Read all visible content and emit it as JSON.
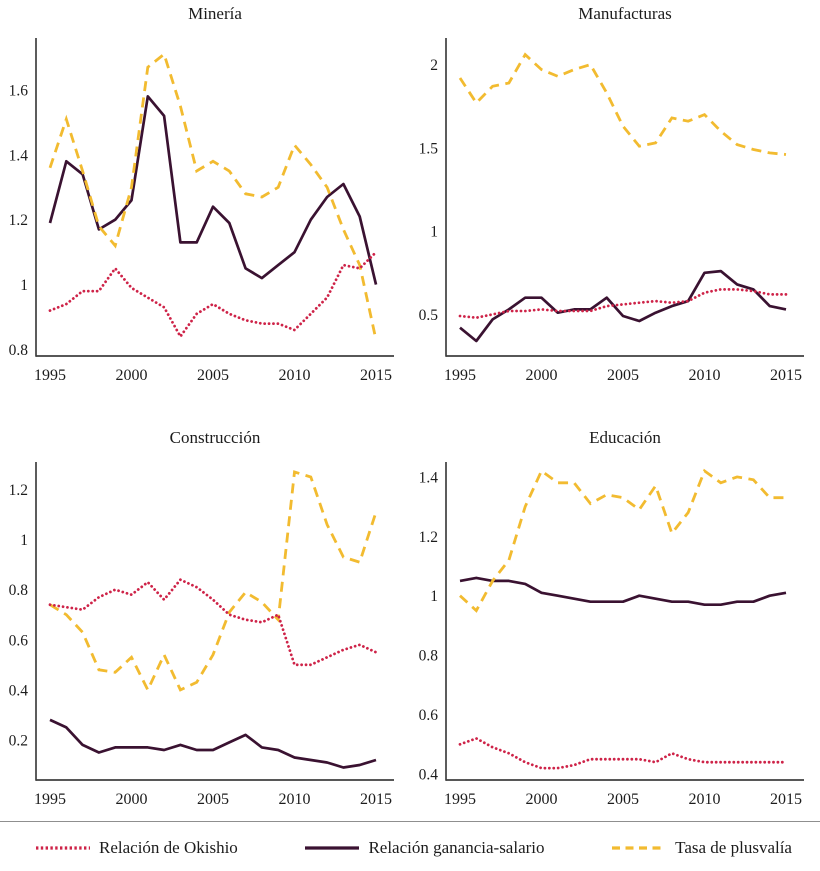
{
  "figure": {
    "kind": "line-chart-grid",
    "panels": 4
  },
  "colors": {
    "okishio": "#CE2348",
    "ganancia": "#3A1231",
    "plusvalia": "#F2BB30",
    "axis": "#3f3f3f",
    "text": "#1c1c1c",
    "divider": "#8f8f8f"
  },
  "legend": {
    "items": [
      {
        "key": "okishio",
        "style": "dotted",
        "label": "Relación de Okishio"
      },
      {
        "key": "ganancia",
        "style": "solid",
        "label": "Relación ganancia-salario"
      },
      {
        "key": "plusvalia",
        "style": "dashed",
        "label": "Tasa de plusvalía"
      }
    ]
  },
  "chart_data": [
    {
      "type": "line",
      "title": "Minería",
      "slug": "mineria",
      "x": [
        1995,
        1996,
        1997,
        1998,
        1999,
        2000,
        2001,
        2002,
        2003,
        2004,
        2005,
        2006,
        2007,
        2008,
        2009,
        2010,
        2011,
        2012,
        2013,
        2014,
        2015
      ],
      "xticks": [
        1995,
        2000,
        2005,
        2010,
        2015
      ],
      "yticks": [
        0.8,
        1,
        1.2,
        1.4,
        1.6
      ],
      "ylim": [
        0.78,
        1.76
      ],
      "grid": false,
      "series": [
        {
          "key": "okishio",
          "name": "Relación de Okishio",
          "style": "dotted",
          "values": [
            0.92,
            0.94,
            0.98,
            0.98,
            1.05,
            0.99,
            0.96,
            0.93,
            0.84,
            0.91,
            0.94,
            0.91,
            0.89,
            0.88,
            0.88,
            0.86,
            0.91,
            0.96,
            1.06,
            1.05,
            1.1
          ]
        },
        {
          "key": "ganancia",
          "name": "Relación ganancia-salario",
          "style": "solid",
          "values": [
            1.19,
            1.38,
            1.34,
            1.17,
            1.2,
            1.26,
            1.58,
            1.52,
            1.13,
            1.13,
            1.24,
            1.19,
            1.05,
            1.02,
            1.06,
            1.1,
            1.2,
            1.27,
            1.31,
            1.21,
            1.0
          ]
        },
        {
          "key": "plusvalia",
          "name": "Tasa de plusvalía",
          "style": "dashed",
          "values": [
            1.36,
            1.51,
            1.35,
            1.18,
            1.12,
            1.3,
            1.67,
            1.71,
            1.55,
            1.35,
            1.38,
            1.35,
            1.28,
            1.27,
            1.3,
            1.43,
            1.37,
            1.3,
            1.17,
            1.06,
            0.83
          ]
        }
      ]
    },
    {
      "type": "line",
      "title": "Manufacturas",
      "slug": "manufacturas",
      "x": [
        1995,
        1996,
        1997,
        1998,
        1999,
        2000,
        2001,
        2002,
        2003,
        2004,
        2005,
        2006,
        2007,
        2008,
        2009,
        2010,
        2011,
        2012,
        2013,
        2014,
        2015
      ],
      "xticks": [
        1995,
        2000,
        2005,
        2010,
        2015
      ],
      "yticks": [
        0.5,
        1,
        1.5,
        2
      ],
      "ylim": [
        0.25,
        2.16
      ],
      "grid": false,
      "series": [
        {
          "key": "okishio",
          "name": "Relación de Okishio",
          "style": "dotted",
          "values": [
            0.49,
            0.48,
            0.5,
            0.52,
            0.52,
            0.53,
            0.52,
            0.52,
            0.52,
            0.55,
            0.56,
            0.57,
            0.58,
            0.57,
            0.58,
            0.63,
            0.65,
            0.65,
            0.64,
            0.62,
            0.62
          ]
        },
        {
          "key": "ganancia",
          "name": "Relación ganancia-salario",
          "style": "solid",
          "values": [
            0.42,
            0.34,
            0.47,
            0.53,
            0.6,
            0.6,
            0.51,
            0.53,
            0.53,
            0.6,
            0.49,
            0.46,
            0.51,
            0.55,
            0.58,
            0.75,
            0.76,
            0.68,
            0.65,
            0.55,
            0.53
          ]
        },
        {
          "key": "plusvalia",
          "name": "Tasa de plusvalía",
          "style": "dashed",
          "values": [
            1.92,
            1.77,
            1.87,
            1.89,
            2.06,
            1.97,
            1.93,
            1.97,
            2.0,
            1.83,
            1.63,
            1.51,
            1.53,
            1.68,
            1.66,
            1.7,
            1.6,
            1.52,
            1.49,
            1.47,
            1.46
          ]
        }
      ]
    },
    {
      "type": "line",
      "title": "Construcción",
      "slug": "construccion",
      "x": [
        1995,
        1996,
        1997,
        1998,
        1999,
        2000,
        2001,
        2002,
        2003,
        2004,
        2005,
        2006,
        2007,
        2008,
        2009,
        2010,
        2011,
        2012,
        2013,
        2014,
        2015
      ],
      "xticks": [
        1995,
        2000,
        2005,
        2010,
        2015
      ],
      "yticks": [
        0.2,
        0.4,
        0.6,
        0.8,
        1,
        1.2
      ],
      "ylim": [
        0.04,
        1.31
      ],
      "grid": false,
      "series": [
        {
          "key": "okishio",
          "name": "Relación de Okishio",
          "style": "dotted",
          "values": [
            0.74,
            0.73,
            0.72,
            0.77,
            0.8,
            0.78,
            0.83,
            0.76,
            0.84,
            0.81,
            0.76,
            0.7,
            0.68,
            0.67,
            0.7,
            0.5,
            0.5,
            0.53,
            0.56,
            0.58,
            0.55
          ]
        },
        {
          "key": "ganancia",
          "name": "Relación ganancia-salario",
          "style": "solid",
          "values": [
            0.28,
            0.25,
            0.18,
            0.15,
            0.17,
            0.17,
            0.17,
            0.16,
            0.18,
            0.16,
            0.16,
            0.19,
            0.22,
            0.17,
            0.16,
            0.13,
            0.12,
            0.11,
            0.09,
            0.1,
            0.12
          ]
        },
        {
          "key": "plusvalia",
          "name": "Tasa de plusvalía",
          "style": "dashed",
          "values": [
            0.74,
            0.7,
            0.63,
            0.48,
            0.47,
            0.53,
            0.4,
            0.54,
            0.4,
            0.43,
            0.54,
            0.71,
            0.79,
            0.75,
            0.68,
            1.27,
            1.25,
            1.06,
            0.93,
            0.91,
            1.11
          ]
        }
      ]
    },
    {
      "type": "line",
      "title": "Educación",
      "slug": "educacion",
      "x": [
        1995,
        1996,
        1997,
        1998,
        1999,
        2000,
        2001,
        2002,
        2003,
        2004,
        2005,
        2006,
        2007,
        2008,
        2009,
        2010,
        2011,
        2012,
        2013,
        2014,
        2015
      ],
      "xticks": [
        1995,
        2000,
        2005,
        2010,
        2015
      ],
      "yticks": [
        0.4,
        0.6,
        0.8,
        1,
        1.2,
        1.4
      ],
      "ylim": [
        0.38,
        1.45
      ],
      "grid": false,
      "series": [
        {
          "key": "okishio",
          "name": "Relación de Okishio",
          "style": "dotted",
          "values": [
            0.5,
            0.52,
            0.49,
            0.47,
            0.44,
            0.42,
            0.42,
            0.43,
            0.45,
            0.45,
            0.45,
            0.45,
            0.44,
            0.47,
            0.45,
            0.44,
            0.44,
            0.44,
            0.44,
            0.44,
            0.44
          ]
        },
        {
          "key": "ganancia",
          "name": "Relación ganancia-salario",
          "style": "solid",
          "values": [
            1.05,
            1.06,
            1.05,
            1.05,
            1.04,
            1.01,
            1.0,
            0.99,
            0.98,
            0.98,
            0.98,
            1.0,
            0.99,
            0.98,
            0.98,
            0.97,
            0.97,
            0.98,
            0.98,
            1.0,
            1.01
          ]
        },
        {
          "key": "plusvalia",
          "name": "Tasa de plusvalía",
          "style": "dashed",
          "values": [
            1.0,
            0.95,
            1.05,
            1.12,
            1.3,
            1.42,
            1.38,
            1.38,
            1.31,
            1.34,
            1.33,
            1.29,
            1.37,
            1.21,
            1.28,
            1.42,
            1.38,
            1.4,
            1.39,
            1.33,
            1.33
          ]
        }
      ]
    }
  ]
}
